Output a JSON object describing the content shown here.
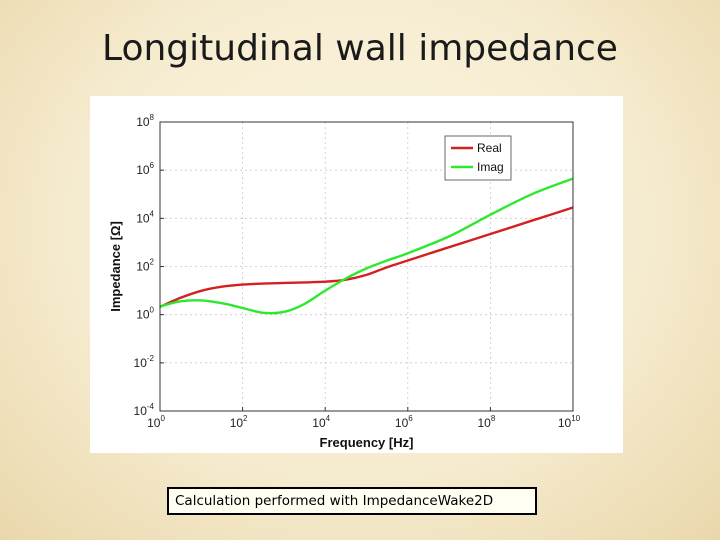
{
  "slide": {
    "title": "Longitudinal wall impedance",
    "caption": "Calculation performed with ImpedanceWake2D"
  },
  "colors": {
    "real": "#d42020",
    "imag": "#2ee82e",
    "grid": "#c9c9c9"
  },
  "chart_data": {
    "type": "line",
    "title": "",
    "xlabel": "Frequency [Hz]",
    "ylabel": "Impedance [Ω]",
    "xscale": "log",
    "yscale": "log",
    "xlim": [
      1,
      10000000000
    ],
    "ylim": [
      0.0001,
      100000000
    ],
    "xticks": [
      {
        "base": "10",
        "exp": "0"
      },
      {
        "base": "10",
        "exp": "2"
      },
      {
        "base": "10",
        "exp": "4"
      },
      {
        "base": "10",
        "exp": "6"
      },
      {
        "base": "10",
        "exp": "8"
      },
      {
        "base": "10",
        "exp": "10"
      }
    ],
    "yticks": [
      {
        "base": "10",
        "exp": "-4"
      },
      {
        "base": "10",
        "exp": "-2"
      },
      {
        "base": "10",
        "exp": "0"
      },
      {
        "base": "10",
        "exp": "2"
      },
      {
        "base": "10",
        "exp": "4"
      },
      {
        "base": "10",
        "exp": "6"
      },
      {
        "base": "10",
        "exp": "8"
      }
    ],
    "grid": true,
    "legend_position": "top-right",
    "series": [
      {
        "name": "Real",
        "x": [
          1,
          3.16,
          10,
          31.6,
          100,
          316,
          1000,
          3160,
          10000,
          31600,
          100000,
          316000,
          1000000,
          10000000,
          100000000,
          1000000000,
          10000000000
        ],
        "y": [
          2.1,
          5.0,
          9.8,
          14.5,
          17.8,
          19.5,
          20.9,
          21.9,
          23.4,
          28.2,
          44.7,
          93.3,
          178,
          631,
          2240,
          7940,
          28200
        ]
      },
      {
        "name": "Imag",
        "x": [
          1,
          3.16,
          10,
          31.6,
          100,
          316,
          1000,
          3160,
          10000,
          31600,
          100000,
          316000,
          1000000,
          10000000,
          100000000,
          1000000000,
          10000000000
        ],
        "y": [
          2.2,
          3.6,
          3.9,
          3.0,
          1.9,
          1.2,
          1.3,
          2.8,
          10.0,
          31.6,
          83.2,
          178,
          355,
          1780,
          14100,
          100000,
          446700
        ]
      }
    ]
  }
}
